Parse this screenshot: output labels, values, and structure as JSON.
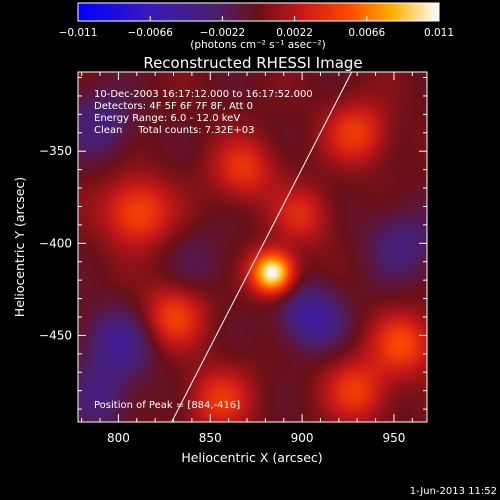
{
  "chart_data": {
    "type": "heatmap",
    "title": "Reconstructed RHESSI Image",
    "xlabel": "Heliocentric X (arcsec)",
    "ylabel": "Heliocentric Y (arcsec)",
    "xlim": [
      778,
      968
    ],
    "ylim": [
      -497,
      -307
    ],
    "xticks": [
      800,
      850,
      900,
      950
    ],
    "yticks": [
      -350,
      -400,
      -450
    ],
    "colorbar": {
      "ticks": [
        -0.011,
        -0.0066,
        -0.0022,
        0.0022,
        0.0066,
        0.011
      ],
      "tick_labels": [
        "−0.011",
        "−0.0066",
        "−0.0022",
        "0.0022",
        "0.0066",
        "0.011"
      ],
      "range": [
        -0.011,
        0.011
      ]
    },
    "annotations": [
      "10-Dec-2003 16:17:12.000 to 16:17:52.000",
      "Detectors: 4F 5F 6F 7F 8F, Att 0",
      "Energy Range: 6.0 - 12.0 keV",
      "Clean     Total counts: 7.32E+03"
    ],
    "peak": {
      "label": "Position of Peak = [884,-416]",
      "x": 884,
      "y": -416,
      "value": 0.011
    },
    "limb_line": [
      [
        829,
        -497
      ],
      [
        927,
        -307
      ]
    ],
    "features": [
      {
        "x": 884,
        "y": -416,
        "amplitude": 0.0115,
        "sigma": 8
      },
      {
        "x": 810,
        "y": -383,
        "amplitude": 0.0055,
        "sigma": 13
      },
      {
        "x": 830,
        "y": -440,
        "amplitude": 0.0048,
        "sigma": 12
      },
      {
        "x": 868,
        "y": -360,
        "amplitude": 0.0042,
        "sigma": 12
      },
      {
        "x": 930,
        "y": -340,
        "amplitude": 0.0045,
        "sigma": 12
      },
      {
        "x": 900,
        "y": -385,
        "amplitude": 0.0035,
        "sigma": 11
      },
      {
        "x": 955,
        "y": -455,
        "amplitude": 0.005,
        "sigma": 12
      },
      {
        "x": 855,
        "y": -485,
        "amplitude": 0.0042,
        "sigma": 12
      },
      {
        "x": 930,
        "y": -480,
        "amplitude": 0.0045,
        "sigma": 12
      },
      {
        "x": 800,
        "y": -455,
        "amplitude": -0.0042,
        "sigma": 14
      },
      {
        "x": 790,
        "y": -335,
        "amplitude": -0.0035,
        "sigma": 13
      },
      {
        "x": 905,
        "y": -440,
        "amplitude": -0.0052,
        "sigma": 12
      },
      {
        "x": 955,
        "y": -400,
        "amplitude": -0.0032,
        "sigma": 14
      },
      {
        "x": 845,
        "y": -410,
        "amplitude": -0.0015,
        "sigma": 12
      },
      {
        "x": 790,
        "y": -485,
        "amplitude": -0.003,
        "sigma": 12
      }
    ],
    "colormap_stops": [
      {
        "v": 0.0,
        "c": "#0000ff"
      },
      {
        "v": 0.2,
        "c": "#3a1ab8"
      },
      {
        "v": 0.38,
        "c": "#4a1f6e"
      },
      {
        "v": 0.5,
        "c": "#6a1018"
      },
      {
        "v": 0.62,
        "c": "#c81818"
      },
      {
        "v": 0.75,
        "c": "#ff4800"
      },
      {
        "v": 0.87,
        "c": "#ffb000"
      },
      {
        "v": 1.0,
        "c": "#ffffff"
      }
    ]
  },
  "colorbar_unit_label": "(photons cm⁻² s⁻¹ asec⁻²)",
  "timestamp": "1-Jun-2013 11:52"
}
